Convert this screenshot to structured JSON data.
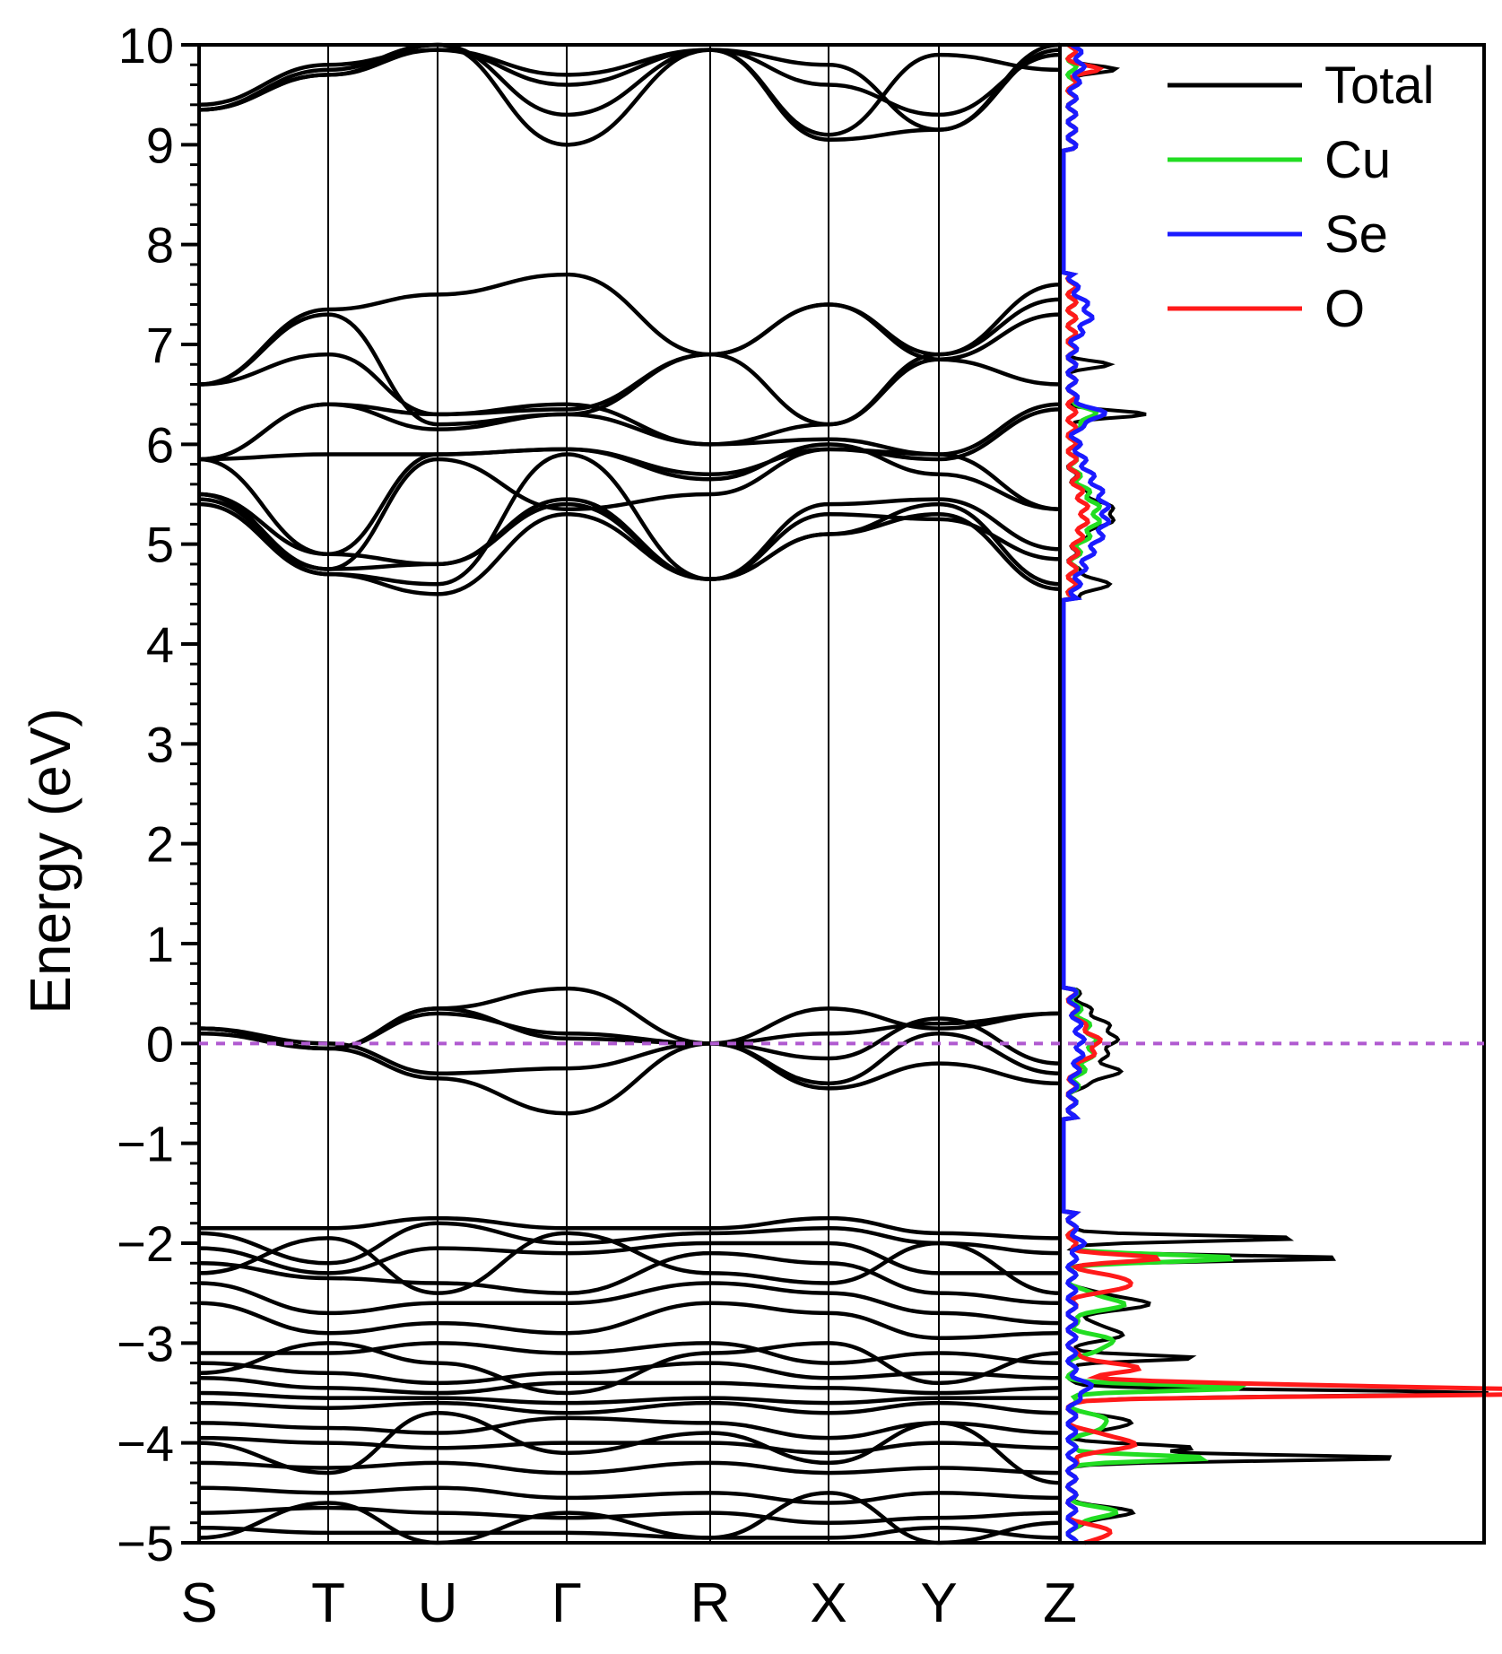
{
  "chart_data": {
    "type": "line",
    "ylabel": "Energy (eV)",
    "ylim": [
      -5,
      10
    ],
    "yticks": [
      "10",
      "9",
      "8",
      "7",
      "6",
      "5",
      "4",
      "3",
      "2",
      "1",
      "0",
      "-1",
      "-2",
      "-3",
      "-4",
      "-5"
    ],
    "k_path": [
      "S",
      "T",
      "U",
      "Γ",
      "R",
      "X",
      "Y",
      "Z"
    ],
    "fermi_level": 0,
    "fermi_color": "#b05ad0",
    "band_color": "#000000",
    "legend": [
      {
        "name": "Total",
        "color": "#000000"
      },
      {
        "name": "Cu",
        "color": "#22dd22"
      },
      {
        "name": "Se",
        "color": "#1a1aff"
      },
      {
        "name": "O",
        "color": "#ff1a1a"
      }
    ],
    "bands_sample": [
      {
        "name": "valence-top-1",
        "k": [
          "S",
          "T",
          "U",
          "Γ",
          "R",
          "X",
          "Y",
          "Z"
        ],
        "energy": [
          0.15,
          -0.05,
          0.35,
          0.55,
          0.0,
          0.35,
          0.15,
          0.3
        ]
      },
      {
        "name": "valence-top-2",
        "k": [
          "S",
          "T",
          "U",
          "Γ",
          "R",
          "X",
          "Y",
          "Z"
        ],
        "energy": [
          0.15,
          -0.05,
          -0.35,
          -0.7,
          0.0,
          -0.45,
          -0.2,
          -0.4
        ]
      },
      {
        "name": "conduction-low",
        "k": [
          "S",
          "T",
          "U",
          "Γ",
          "R",
          "X",
          "Y",
          "Z"
        ],
        "energy": [
          5.5,
          4.7,
          4.5,
          5.3,
          4.65,
          5.1,
          5.3,
          4.55
        ]
      },
      {
        "name": "conduction-mid",
        "k": [
          "S",
          "T",
          "U",
          "Γ",
          "R",
          "X",
          "Y",
          "Z"
        ],
        "energy": [
          6.6,
          7.35,
          7.5,
          7.7,
          6.9,
          7.4,
          6.9,
          7.6
        ]
      },
      {
        "name": "conduction-high",
        "k": [
          "S",
          "T",
          "U",
          "Γ",
          "R",
          "X",
          "Y",
          "Z"
        ],
        "energy": [
          9.35,
          9.7,
          10.0,
          9.0,
          9.95,
          9.05,
          9.15,
          10.0
        ]
      }
    ],
    "dos_peaks_sample": [
      {
        "species": "Total",
        "energy": [
          -3.5,
          -4.15,
          -2.15,
          -1.95,
          6.3,
          9.75
        ],
        "value": [
          1.0,
          0.83,
          0.69,
          0.6,
          0.19,
          0.11
        ]
      },
      {
        "species": "Cu",
        "energy": [
          -3.45,
          -4.15,
          -2.15
        ],
        "value": [
          0.45,
          0.35,
          0.4
        ]
      },
      {
        "species": "O",
        "energy": [
          -3.5,
          -3.45
        ],
        "value": [
          1.0,
          0.95
        ]
      }
    ]
  }
}
